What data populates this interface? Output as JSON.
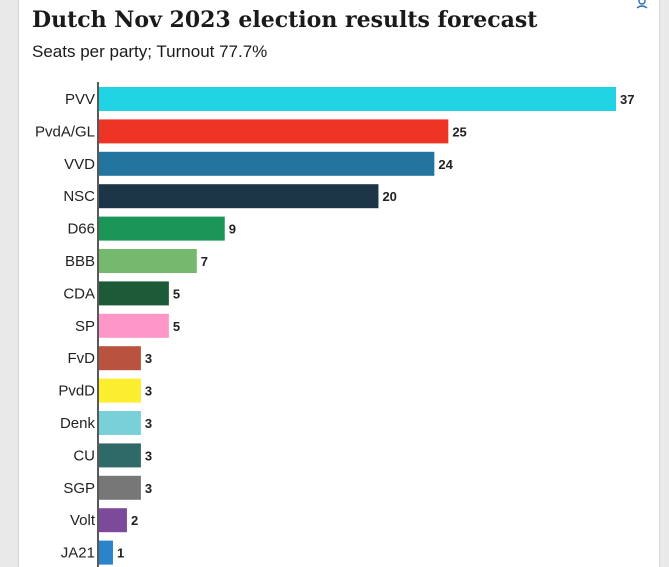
{
  "header": {
    "title": "Dutch Nov 2023 election results forecast",
    "subtitle": "Seats per party; Turnout 77.7%",
    "share_icon": "share-icon"
  },
  "chart_data": {
    "type": "bar",
    "orientation": "horizontal",
    "title": "Dutch Nov 2023 election results forecast",
    "subtitle": "Seats per party; Turnout 77.7%",
    "xlabel": "",
    "ylabel": "",
    "xlim": [
      0,
      37
    ],
    "categories": [
      "PVV",
      "PvdA/GL",
      "VVD",
      "NSC",
      "D66",
      "BBB",
      "CDA",
      "SP",
      "FvD",
      "PvdD",
      "Denk",
      "CU",
      "SGP",
      "Volt",
      "JA21"
    ],
    "values": [
      37,
      25,
      24,
      20,
      9,
      7,
      5,
      5,
      3,
      3,
      3,
      3,
      3,
      2,
      1
    ],
    "colors": [
      "#22d3e3",
      "#ee3424",
      "#2474a0",
      "#1c3547",
      "#1b9557",
      "#74b96e",
      "#1c5a38",
      "#ff96c8",
      "#b9523f",
      "#fbee2e",
      "#7ad0d8",
      "#2f6a68",
      "#777777",
      "#7d4a9b",
      "#2a84cc"
    ],
    "grid": false,
    "legend": "none"
  }
}
